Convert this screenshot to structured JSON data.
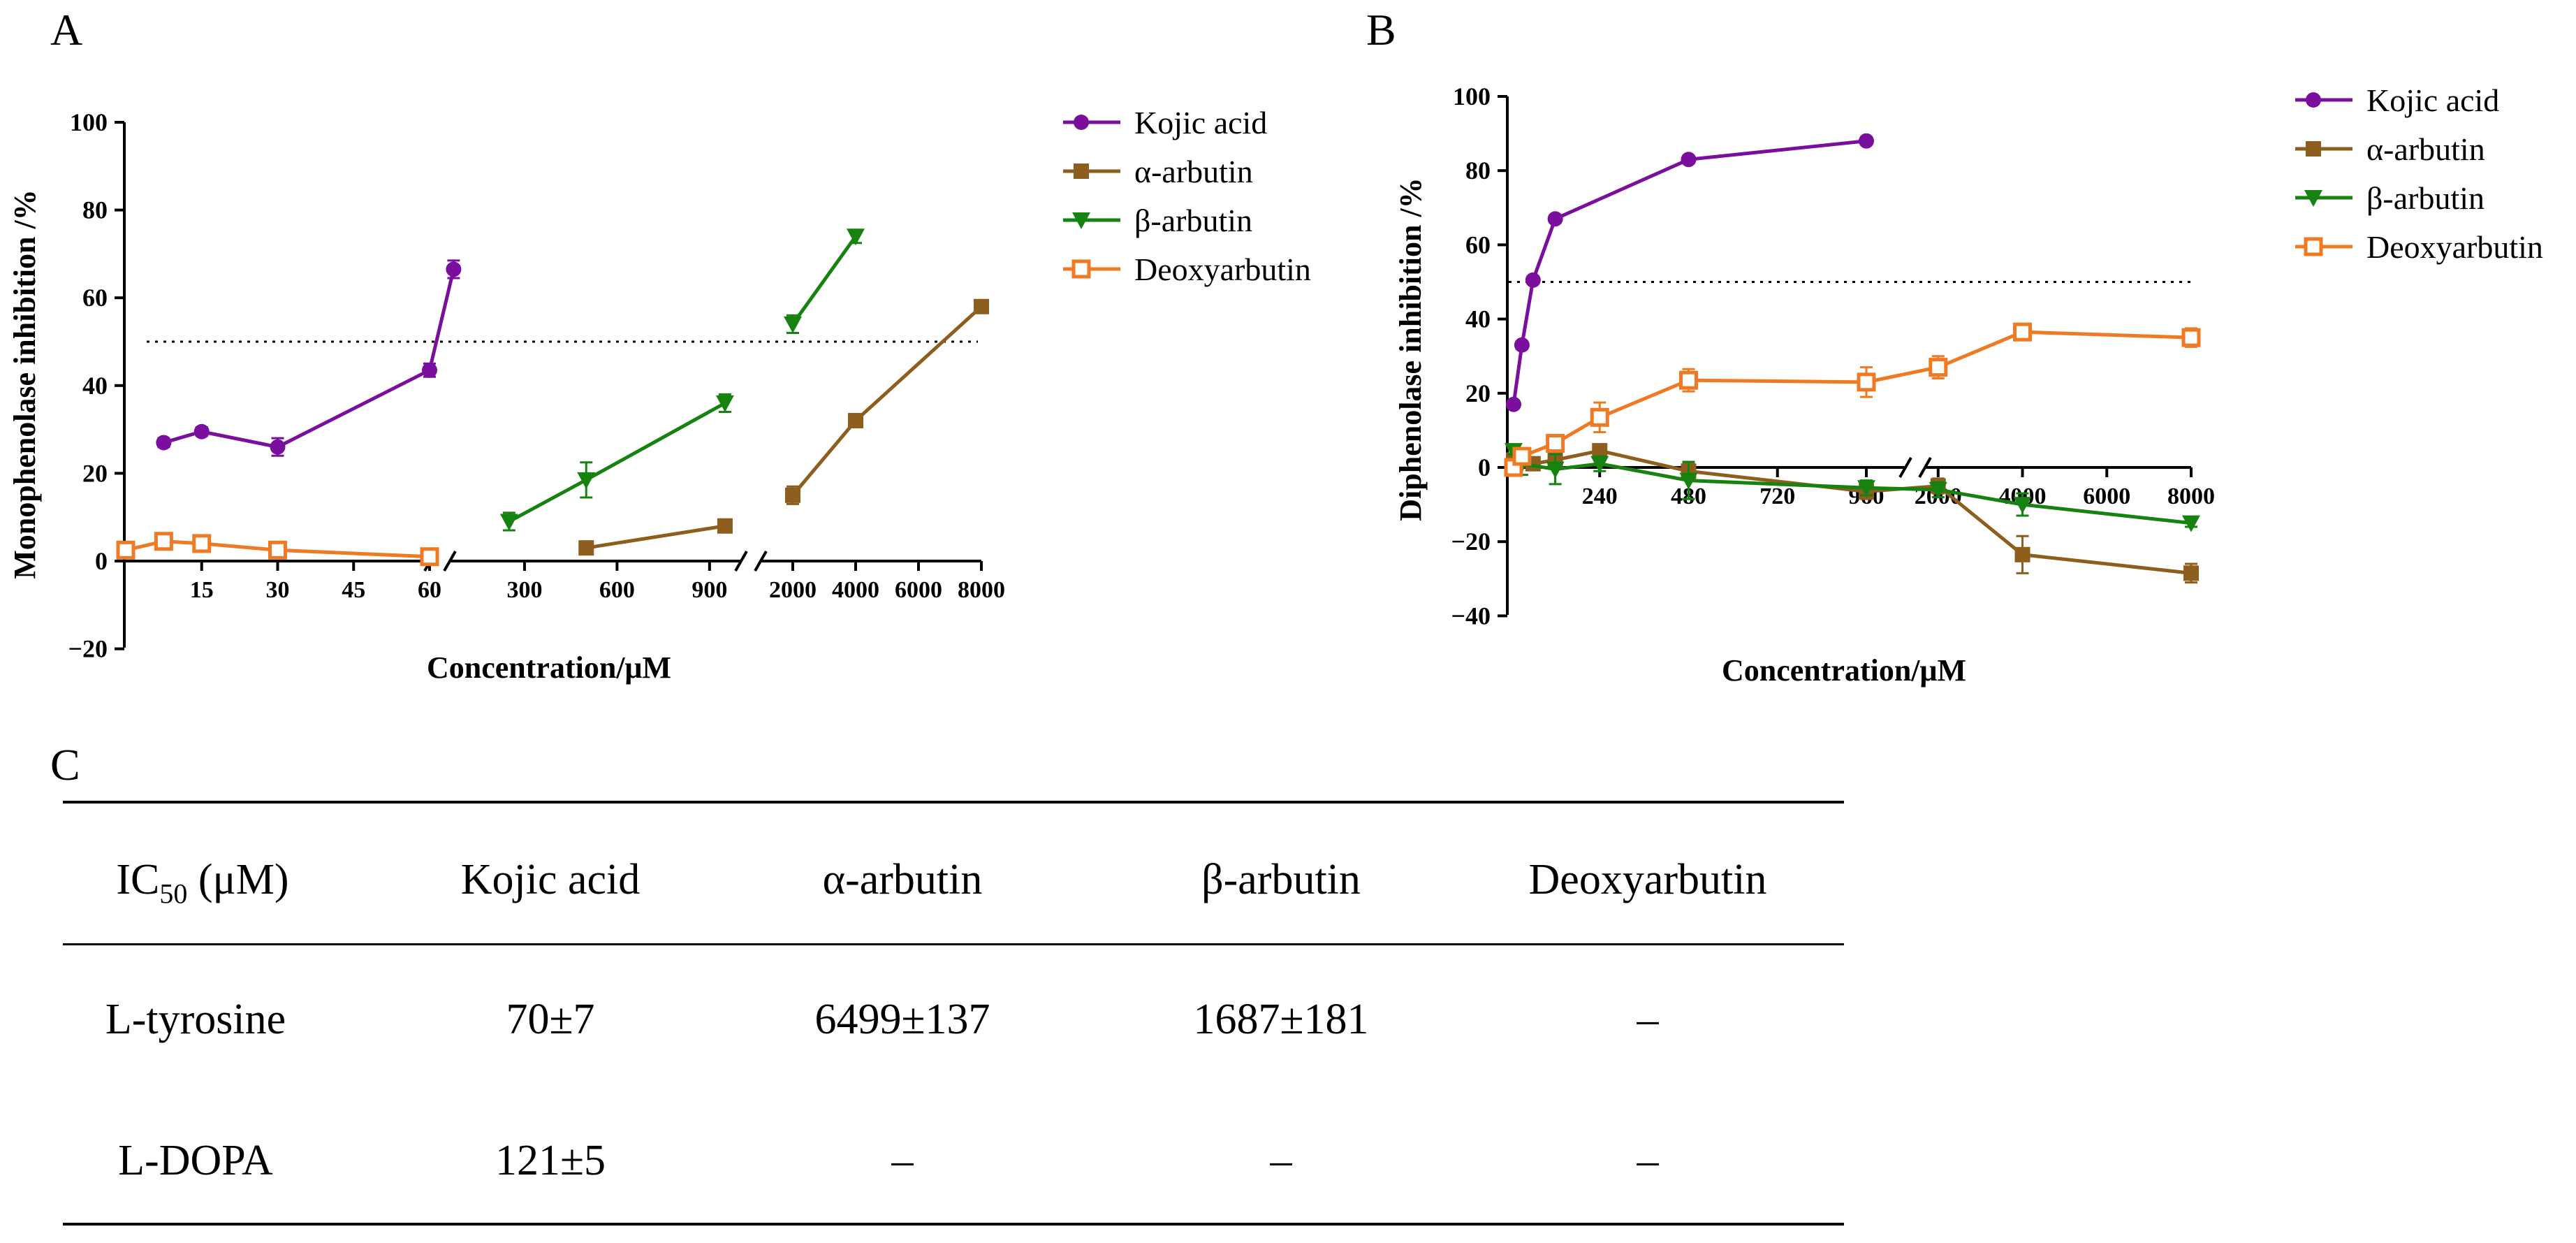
{
  "panels": {
    "a": "A",
    "b": "B",
    "c": "C"
  },
  "chart_data": [
    {
      "panel": "A",
      "type": "line",
      "title": "",
      "xlabel": "Concentration/μM",
      "ylabel": "Monophenolase inhibition /%",
      "ylim": [
        -20,
        100
      ],
      "yticks": [
        "−20",
        "0",
        "20",
        "40",
        "60",
        "80",
        "100"
      ],
      "x_scale": "piecewise (broken axis)",
      "xticks": [
        "15",
        "30",
        "45",
        "60",
        "300",
        "600",
        "900",
        "2000",
        "4000",
        "6000",
        "8000"
      ],
      "reference_line": 50,
      "grid": false,
      "legend_position": "right",
      "series": [
        {
          "name": "Kojic acid",
          "marker": "circle",
          "color": "#7a0f9e",
          "x": [
            7.5,
            15,
            30,
            60,
            70
          ],
          "y": [
            27,
            29.5,
            26,
            43.5,
            66.5
          ],
          "err": [
            1,
            1,
            2,
            1.5,
            2
          ]
        },
        {
          "name": "α-arbutin",
          "marker": "square",
          "color": "#8e5e1e",
          "x": [
            500,
            950,
            2000,
            4000,
            8000
          ],
          "y": [
            3,
            8,
            15,
            32,
            58
          ],
          "err": [
            0.5,
            0.5,
            2,
            1,
            1
          ]
        },
        {
          "name": "β-arbutin",
          "marker": "triangle-down",
          "color": "#16820f",
          "x": [
            250,
            500,
            950,
            2000,
            4000
          ],
          "y": [
            9,
            18.5,
            36,
            54,
            74
          ],
          "err": [
            2,
            4,
            2,
            2,
            1.5
          ]
        },
        {
          "name": "Deoxyarbutin",
          "marker": "open-square",
          "color": "#ef7a23",
          "x": [
            0,
            7.5,
            15,
            30,
            60
          ],
          "y": [
            2.5,
            4.5,
            4,
            2.5,
            1
          ],
          "err": [
            0.5,
            1,
            0.5,
            1,
            0.5
          ]
        }
      ]
    },
    {
      "panel": "B",
      "type": "line",
      "title": "",
      "xlabel": "Concentration/μM",
      "ylabel": "Diphenolase inhibition /%",
      "ylim": [
        -40,
        100
      ],
      "yticks": [
        "−40",
        "−20",
        "0",
        "20",
        "40",
        "60",
        "80",
        "100"
      ],
      "x_scale": "piecewise (broken axis)",
      "xticks": [
        "240",
        "480",
        "720",
        "960",
        "2000",
        "4000",
        "6000",
        "8000"
      ],
      "reference_line": 50,
      "grid": false,
      "legend_position": "right",
      "series": [
        {
          "name": "Kojic acid",
          "marker": "circle",
          "color": "#7a0f9e",
          "x": [
            7.5,
            30,
            60,
            120,
            480,
            960
          ],
          "y": [
            17,
            33,
            50.5,
            67,
            83,
            88
          ],
          "err": [
            1,
            1,
            1,
            1,
            1,
            1
          ]
        },
        {
          "name": "α-arbutin",
          "marker": "square",
          "color": "#8e5e1e",
          "x": [
            7.5,
            30,
            60,
            120,
            240,
            480,
            960,
            2000,
            4000,
            8000
          ],
          "y": [
            2,
            3,
            1,
            2,
            4.5,
            -1,
            -6.5,
            -5,
            -23.5,
            -28.5
          ],
          "err": [
            1,
            1,
            1,
            1,
            1,
            2,
            2,
            2,
            5,
            2.5
          ]
        },
        {
          "name": "β-arbutin",
          "marker": "triangle-down",
          "color": "#16820f",
          "x": [
            7.5,
            30,
            120,
            240,
            480,
            960,
            2000,
            4000,
            8000
          ],
          "y": [
            4.5,
            1,
            -0.5,
            1,
            -3.5,
            -5.5,
            -6,
            -10,
            -15
          ],
          "err": [
            1,
            3,
            4,
            2,
            5,
            2,
            2,
            3,
            1
          ]
        },
        {
          "name": "Deoxyarbutin",
          "marker": "open-square",
          "color": "#ef7a23",
          "x": [
            7.5,
            30,
            120,
            240,
            480,
            960,
            2000,
            4000,
            8000
          ],
          "y": [
            0,
            3,
            6.5,
            13.5,
            23.5,
            23,
            27,
            36.5,
            35
          ],
          "err": [
            1,
            1,
            2,
            4,
            3,
            4,
            3,
            2,
            2.5
          ]
        }
      ]
    }
  ],
  "table": {
    "header": [
      "IC",
      "50",
      " (μM)",
      "Kojic acid",
      "α-arbutin",
      "β-arbutin",
      "Deoxyarbutin"
    ],
    "rows": [
      {
        "label": "L-tyrosine",
        "values": [
          "70±7",
          "6499±137",
          "1687±181",
          "–"
        ]
      },
      {
        "label": "L-DOPA",
        "values": [
          "121±5",
          "–",
          "–",
          "–"
        ]
      }
    ]
  }
}
